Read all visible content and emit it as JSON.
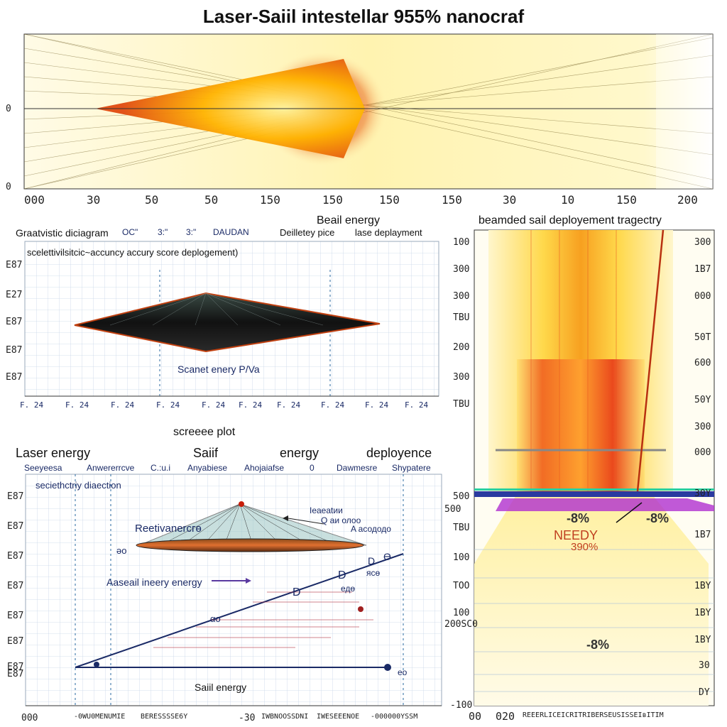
{
  "header": {
    "title": "Laser-Saiil intestellar 955% nanocraf"
  },
  "top_plot": {
    "y_ticks": [
      "0",
      "0"
    ],
    "x_ticks": [
      "000",
      "30",
      "50",
      "50",
      "150",
      "150",
      "150",
      "150",
      "30",
      "10",
      "150",
      "200"
    ]
  },
  "section_labels": {
    "beam_energy": "Beail energy"
  },
  "mid_left": {
    "header_items": [
      "Graatvistic diciagram",
      "OC\"",
      "3:\"",
      "3:\"",
      "DAUDAN",
      "Deilletey pice",
      "lase deplayment"
    ],
    "subtitle": "scelettivilsitcic~accuncy accury score deplogement)",
    "y_ticks": [
      "E87",
      "E27",
      "E87",
      "E87",
      "E87"
    ],
    "center_label": "Scanet enery P/Va",
    "x_ticks": [
      "F. 24",
      "F. 24",
      "F. 24",
      "F. 24",
      "F. 24",
      "F. 24",
      "F. 24",
      "F. 24",
      "F. 24",
      "F. 24"
    ],
    "caption": "screeee plot"
  },
  "bottom_left": {
    "headers": [
      "Laser  energy",
      "Saiif",
      "energy",
      "deployence"
    ],
    "sub_headers": [
      "Seeyeesa",
      "Anwererrcve",
      "C.:u.i",
      "Anyabiese",
      "Ahojaiafse",
      "0",
      "Dawmesre",
      "Shypatere"
    ],
    "title": "seciethctriy diaection",
    "y_ticks": [
      "E87",
      "E87",
      "E87",
      "E87",
      "E87",
      "E87",
      "E87",
      "E87"
    ],
    "annotations": {
      "reactivance": "Reetivanercгө",
      "eaeent": "Ieaeatии",
      "q": "Q аи олоо",
      "absodd": "A асододо",
      "ao": "әо",
      "assail": "Aaseail ineery energy",
      "d1": "D",
      "d2": "D",
      "d3": "D",
      "d4": "Ө",
      "eoe": "едө",
      "rso": "ясө",
      "sail_energy": "Saiil energy",
      "alpha": "αо",
      "eoo": "ео"
    },
    "x_ticks": [
      "000",
      "-0WU0MENUMIE",
      "BERESSSSE6Y",
      "-30",
      "IWBNOOSSDNI",
      "IWESEEENOE",
      "-000000YSSM"
    ]
  },
  "right_panel": {
    "title": "beamded sail deployement tragectry",
    "left_ticks": [
      "100",
      "300",
      "300",
      "TBU",
      "200",
      "300",
      "TBU",
      "500",
      "500",
      "TBU",
      "100",
      "TOO",
      "100",
      "200SC0",
      "-100"
    ],
    "right_ticks": [
      "300",
      "1B7",
      "000",
      "50T",
      "600",
      "50Y",
      "300",
      "000",
      "30Y",
      "1B7",
      "1BY",
      "1BY",
      "1BY",
      "30",
      "DY"
    ],
    "labels": {
      "pct1": "-8%",
      "pct2": "-8%",
      "needy": "NEEDY",
      "pct390": "390%",
      "pct3": "-8%"
    },
    "x_ticks": [
      "00",
      "020",
      "REEERLICEIСRITRIBERSEUSISSEIвITIM"
    ]
  },
  "colors": {
    "beam_yellow": "#ffe680",
    "beam_red": "#d83a14",
    "navy": "#1a2a66",
    "grid": "#c8d6e8"
  }
}
